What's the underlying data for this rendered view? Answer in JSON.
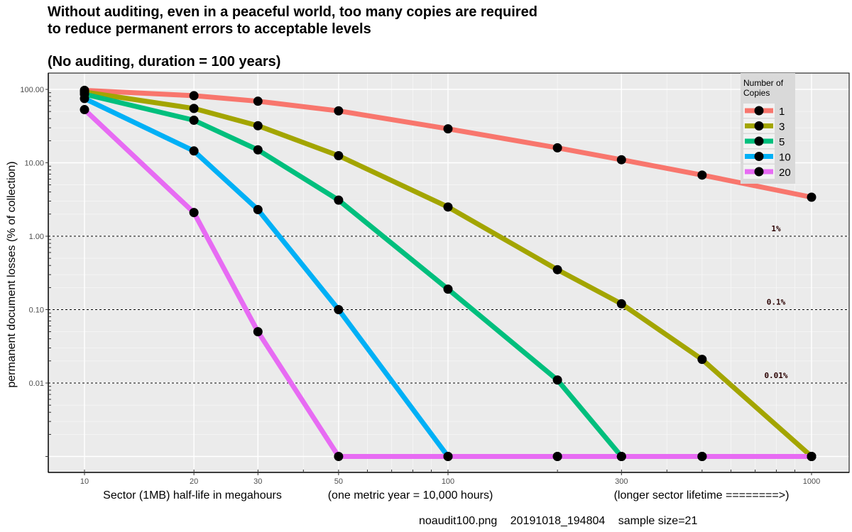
{
  "titles": {
    "line1": "Without auditing, even in a peaceful world, too many copies are required",
    "line2": "to reduce permanent errors to acceptable levels",
    "subtitle": "(No auditing, duration = 100 years)"
  },
  "footer": {
    "filename": "noaudit100.png",
    "timestamp": "20191018_194804",
    "sample": "sample size=21"
  },
  "chart_data": {
    "type": "line",
    "x_scale": "log",
    "y_scale": "log",
    "xlabel_parts": [
      "Sector (1MB) half-life in megahours",
      "(one metric year = 10,000 hours)",
      "(longer sector lifetime ========>)"
    ],
    "ylabel": "permanent document losses (% of collection)",
    "x_ticks": [
      10,
      20,
      30,
      50,
      100,
      300,
      1000
    ],
    "y_ticks": [
      {
        "value": 100,
        "label": "100.00"
      },
      {
        "value": 10,
        "label": "10.00"
      },
      {
        "value": 1,
        "label": "1.00"
      },
      {
        "value": 0.1,
        "label": "0.10"
      },
      {
        "value": 0.01,
        "label": "0.01"
      },
      {
        "value": 0.001,
        "label": ""
      }
    ],
    "xlim": [
      10,
      1000
    ],
    "ylim": [
      0.0006,
      160
    ],
    "grid": true,
    "reference_lines": [
      {
        "y": 1,
        "label": "1%"
      },
      {
        "y": 0.1,
        "label": "0.1%"
      },
      {
        "y": 0.01,
        "label": "0.01%"
      }
    ],
    "legend": {
      "title_lines": [
        "Number of",
        "Copies"
      ],
      "placement": "top-right"
    },
    "x": [
      10,
      20,
      30,
      50,
      100,
      200,
      300,
      500,
      1000
    ],
    "series": [
      {
        "name": "1",
        "color": "#F8766D",
        "values": [
          97,
          82,
          69,
          51,
          29,
          16,
          11,
          6.8,
          3.4
        ]
      },
      {
        "name": "3",
        "color": "#A3A500",
        "values": [
          92,
          55,
          32,
          12.5,
          2.5,
          0.35,
          0.12,
          0.021,
          0.001
        ]
      },
      {
        "name": "5",
        "color": "#00BF7D",
        "values": [
          86,
          38,
          15,
          3.1,
          0.19,
          0.011,
          0.001,
          0.001,
          0.001
        ]
      },
      {
        "name": "10",
        "color": "#00B0F6",
        "values": [
          75,
          14.5,
          2.3,
          0.1,
          0.001,
          0.001,
          0.001,
          0.001,
          0.001
        ]
      },
      {
        "name": "20",
        "color": "#E76BF3",
        "values": [
          53,
          2.1,
          0.05,
          0.001,
          0.001,
          0.001,
          0.001,
          0.001,
          0.001
        ]
      }
    ]
  }
}
